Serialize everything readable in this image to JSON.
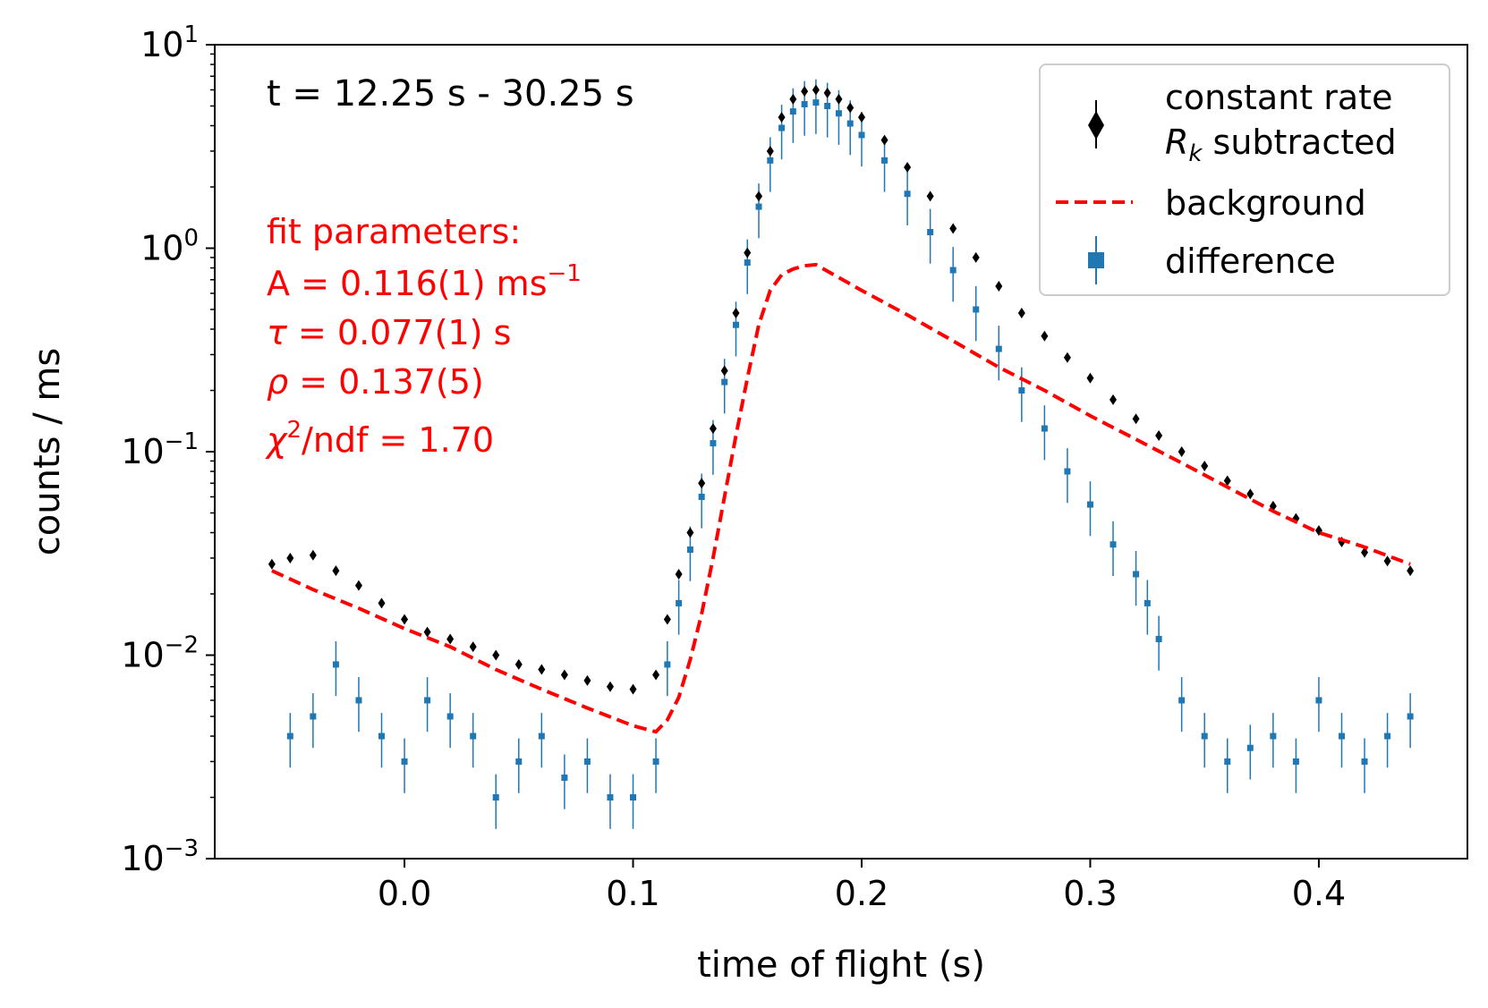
{
  "chart_data": {
    "type": "scatter",
    "title": "",
    "xlabel": "time of flight (s)",
    "ylabel": "counts / ms",
    "xlim": [
      -0.083,
      0.465
    ],
    "ylim": [
      0.001,
      10
    ],
    "yscale": "log",
    "grid": false,
    "legend_position": "top-right",
    "x_ticks": [
      {
        "value": 0.0,
        "label": "0.0"
      },
      {
        "value": 0.1,
        "label": "0.1"
      },
      {
        "value": 0.2,
        "label": "0.2"
      },
      {
        "value": 0.3,
        "label": "0.3"
      },
      {
        "value": 0.4,
        "label": "0.4"
      }
    ],
    "y_ticks": [
      {
        "value": 0.001,
        "base": "10",
        "exp": "−3"
      },
      {
        "value": 0.01,
        "base": "10",
        "exp": "−2"
      },
      {
        "value": 0.1,
        "base": "10",
        "exp": "−1"
      },
      {
        "value": 1,
        "base": "10",
        "exp": "0"
      },
      {
        "value": 10,
        "base": "10",
        "exp": "1"
      }
    ],
    "annotation": "t = 12.25 s - 30.25 s",
    "fit_box": {
      "color": "#ff0000",
      "heading": "fit parameters:",
      "A_text": "A = 0.116(1) ms",
      "A_unit_exp": "−1",
      "tau_sym": "τ",
      "tau_text": " = 0.077(1) s",
      "rho_sym": "ρ",
      "rho_text": " = 0.137(5)",
      "chi_sym": "χ",
      "chi_exp": "2",
      "chi_text": "/ndf = 1.70"
    },
    "legend": [
      {
        "marker": "diamond",
        "color": "#000000",
        "line1": "constant rate",
        "line2_sym": "R",
        "line2_sub": "k",
        "line2_rest": " subtracted"
      },
      {
        "marker": "dashed-line",
        "color": "#ff0000",
        "label": "background"
      },
      {
        "marker": "square",
        "color": "#1f77b4",
        "label": "difference"
      }
    ],
    "series": [
      {
        "name": "constant rate R_k subtracted",
        "color": "#000000",
        "marker": "diamond",
        "x": [
          -0.058,
          -0.05,
          -0.04,
          -0.03,
          -0.02,
          -0.01,
          0.0,
          0.01,
          0.02,
          0.03,
          0.04,
          0.05,
          0.06,
          0.07,
          0.08,
          0.09,
          0.1,
          0.11,
          0.115,
          0.12,
          0.125,
          0.13,
          0.135,
          0.14,
          0.145,
          0.15,
          0.155,
          0.16,
          0.165,
          0.17,
          0.175,
          0.18,
          0.185,
          0.19,
          0.195,
          0.2,
          0.21,
          0.22,
          0.23,
          0.24,
          0.25,
          0.26,
          0.27,
          0.28,
          0.29,
          0.3,
          0.31,
          0.32,
          0.33,
          0.34,
          0.35,
          0.36,
          0.37,
          0.38,
          0.39,
          0.4,
          0.41,
          0.42,
          0.43,
          0.44
        ],
        "y": [
          0.028,
          0.03,
          0.031,
          0.026,
          0.022,
          0.018,
          0.015,
          0.013,
          0.012,
          0.011,
          0.01,
          0.009,
          0.0085,
          0.008,
          0.0075,
          0.007,
          0.0068,
          0.008,
          0.015,
          0.025,
          0.04,
          0.07,
          0.13,
          0.25,
          0.48,
          0.95,
          1.8,
          3.0,
          4.4,
          5.4,
          5.9,
          6.0,
          5.8,
          5.4,
          4.9,
          4.4,
          3.4,
          2.5,
          1.8,
          1.25,
          0.9,
          0.65,
          0.48,
          0.37,
          0.29,
          0.23,
          0.18,
          0.145,
          0.12,
          0.1,
          0.085,
          0.072,
          0.062,
          0.054,
          0.047,
          0.041,
          0.036,
          0.032,
          0.029,
          0.026
        ],
        "yerr_rel": 0.04
      },
      {
        "name": "background",
        "color": "#ff0000",
        "marker": "dashed-line",
        "x": [
          -0.058,
          -0.04,
          -0.02,
          0.0,
          0.02,
          0.04,
          0.06,
          0.08,
          0.1,
          0.11,
          0.115,
          0.12,
          0.125,
          0.13,
          0.135,
          0.14,
          0.145,
          0.15,
          0.155,
          0.16,
          0.165,
          0.17,
          0.175,
          0.18,
          0.2,
          0.22,
          0.24,
          0.26,
          0.28,
          0.3,
          0.32,
          0.34,
          0.36,
          0.38,
          0.4,
          0.42,
          0.44
        ],
        "y": [
          0.026,
          0.021,
          0.017,
          0.0135,
          0.011,
          0.0085,
          0.0068,
          0.0055,
          0.0045,
          0.0042,
          0.0048,
          0.0062,
          0.0095,
          0.016,
          0.03,
          0.06,
          0.12,
          0.23,
          0.42,
          0.62,
          0.74,
          0.79,
          0.82,
          0.83,
          0.62,
          0.47,
          0.35,
          0.26,
          0.2,
          0.15,
          0.115,
          0.088,
          0.067,
          0.051,
          0.04,
          0.034,
          0.028
        ]
      },
      {
        "name": "difference",
        "color": "#1f77b4",
        "marker": "square",
        "x": [
          -0.05,
          -0.04,
          -0.03,
          -0.02,
          -0.01,
          0.0,
          0.01,
          0.02,
          0.03,
          0.04,
          0.05,
          0.06,
          0.07,
          0.08,
          0.09,
          0.1,
          0.11,
          0.115,
          0.12,
          0.125,
          0.13,
          0.135,
          0.14,
          0.145,
          0.15,
          0.155,
          0.16,
          0.165,
          0.17,
          0.175,
          0.18,
          0.185,
          0.19,
          0.195,
          0.2,
          0.21,
          0.22,
          0.23,
          0.24,
          0.25,
          0.26,
          0.27,
          0.28,
          0.29,
          0.3,
          0.31,
          0.32,
          0.325,
          0.33,
          0.34,
          0.35,
          0.36,
          0.37,
          0.38,
          0.39,
          0.4,
          0.41,
          0.42,
          0.43,
          0.44
        ],
        "y": [
          0.004,
          0.005,
          0.009,
          0.006,
          0.004,
          0.003,
          0.006,
          0.005,
          0.004,
          0.002,
          0.003,
          0.004,
          0.0025,
          0.003,
          0.002,
          0.002,
          0.003,
          0.009,
          0.018,
          0.033,
          0.06,
          0.11,
          0.22,
          0.42,
          0.85,
          1.6,
          2.7,
          3.9,
          4.7,
          5.1,
          5.2,
          5.0,
          4.6,
          4.1,
          3.6,
          2.7,
          1.85,
          1.2,
          0.78,
          0.5,
          0.32,
          0.2,
          0.13,
          0.08,
          0.055,
          0.035,
          0.025,
          0.018,
          0.012,
          0.006,
          0.004,
          0.003,
          0.0035,
          0.004,
          0.003,
          0.006,
          0.004,
          0.003,
          0.004,
          0.005
        ],
        "yerr_rel": 0.3
      }
    ]
  }
}
